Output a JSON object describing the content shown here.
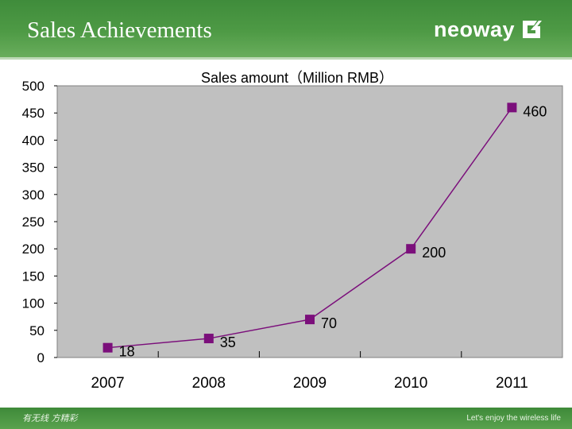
{
  "header": {
    "title": "Sales Achievements",
    "logo_text": "neoway",
    "logo_icon": "neoway-mark-icon",
    "background_color": "#4e9a45"
  },
  "footer": {
    "left_text": "有无线 方精彩",
    "right_text": "Let's enjoy the wireless life",
    "background_color": "#4b9542"
  },
  "chart_data": {
    "type": "line",
    "title": "Sales amount（Million RMB）",
    "xlabel": "",
    "ylabel": "",
    "categories": [
      "2007",
      "2008",
      "2009",
      "2010",
      "2011"
    ],
    "series": [
      {
        "values": [
          18,
          35,
          70,
          200,
          460
        ],
        "color": "#7b0f7b",
        "marker": "square",
        "data_labels": [
          "18",
          "35",
          "70",
          "200",
          "460"
        ]
      }
    ],
    "ylim": [
      0,
      500
    ],
    "yticks": [
      0,
      50,
      100,
      150,
      200,
      250,
      300,
      350,
      400,
      450,
      500
    ],
    "ytick_labels": [
      "0",
      "50",
      "100",
      "150",
      "200",
      "250",
      "300",
      "350",
      "400",
      "450",
      "500"
    ],
    "plot_background": "#c0c0c0",
    "grid": false,
    "legend": "none"
  }
}
